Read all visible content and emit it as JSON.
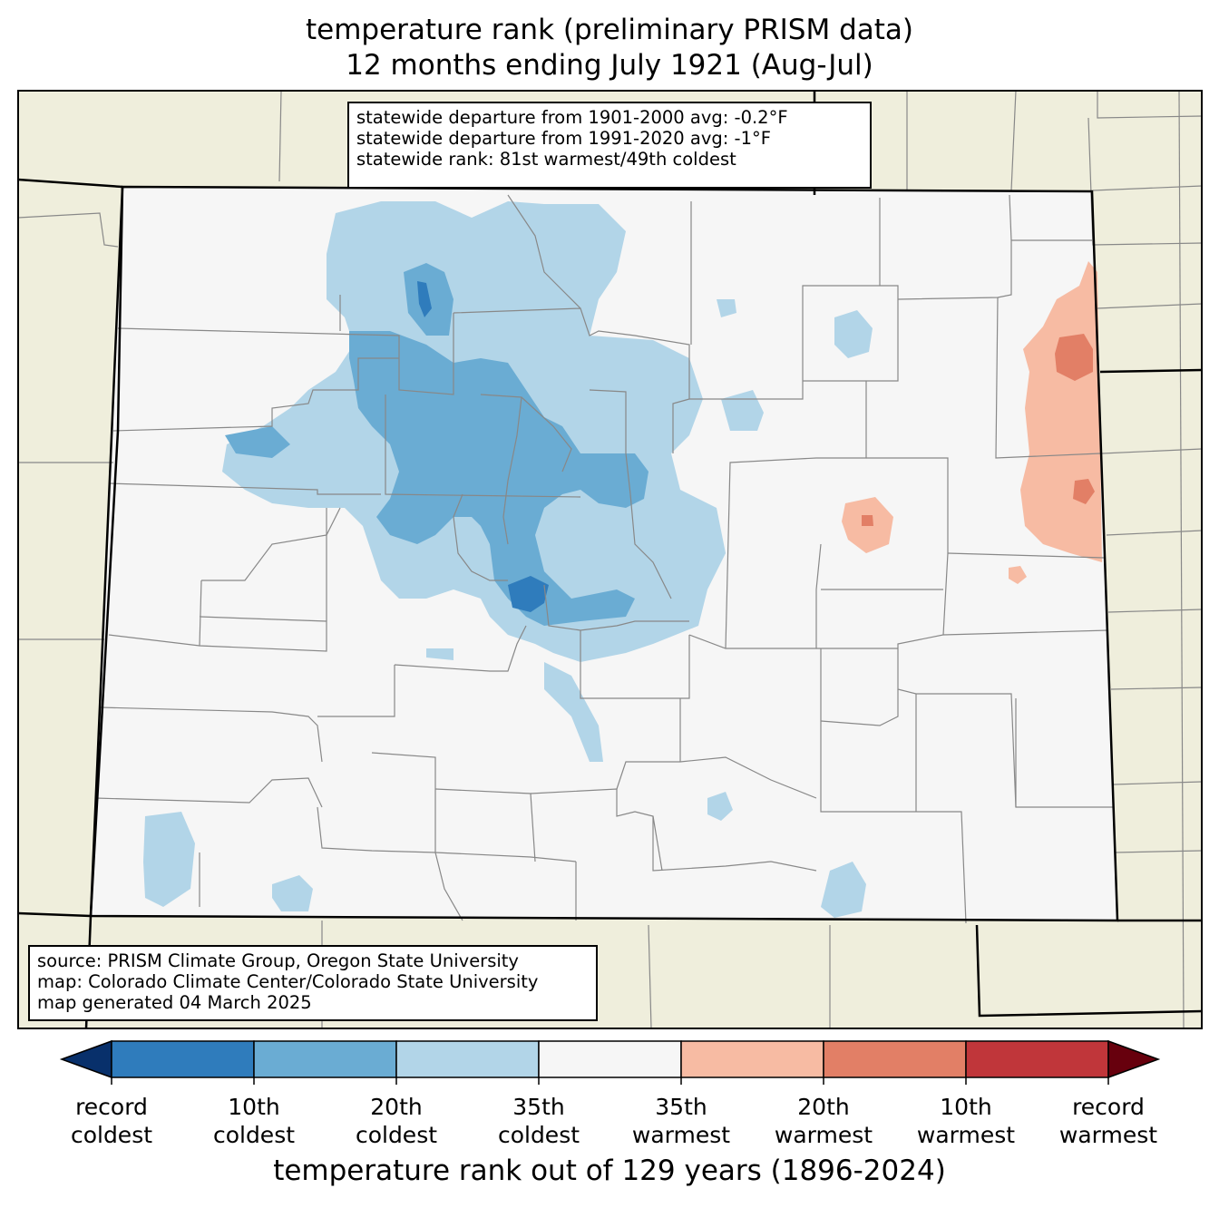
{
  "title": {
    "line1": "temperature rank (preliminary PRISM data)",
    "line2": "12 months ending July 1921 (Aug-Jul)"
  },
  "stats": {
    "line1": "statewide departure from 1901-2000 avg: -0.2°F",
    "line2": "statewide departure from 1991-2020 avg: -1°F",
    "line3": "statewide rank: 81st warmest/49th coldest"
  },
  "source": {
    "line1": "source: PRISM Climate Group, Oregon State University",
    "line2": "map: Colorado Climate Center/Colorado State University",
    "line3": "map generated 04 March 2025"
  },
  "colorbar": {
    "title": "temperature rank out of 129 years (1896-2024)",
    "ticks": [
      {
        "line1": "record",
        "line2": "coldest"
      },
      {
        "line1": "10th",
        "line2": "coldest"
      },
      {
        "line1": "20th",
        "line2": "coldest"
      },
      {
        "line1": "35th",
        "line2": "coldest"
      },
      {
        "line1": "35th",
        "line2": "warmest"
      },
      {
        "line1": "20th",
        "line2": "warmest"
      },
      {
        "line1": "10th",
        "line2": "warmest"
      },
      {
        "line1": "record",
        "line2": "warmest"
      }
    ],
    "colors": [
      "#08306b",
      "#2f7cbc",
      "#6aacd3",
      "#b2d5e8",
      "#f6f6f6",
      "#f7bba3",
      "#e27f66",
      "#c0363a",
      "#67000d"
    ]
  },
  "colors": {
    "background_land": "#efeedc",
    "county_lines": "#888888",
    "state_lines": "#000000"
  }
}
